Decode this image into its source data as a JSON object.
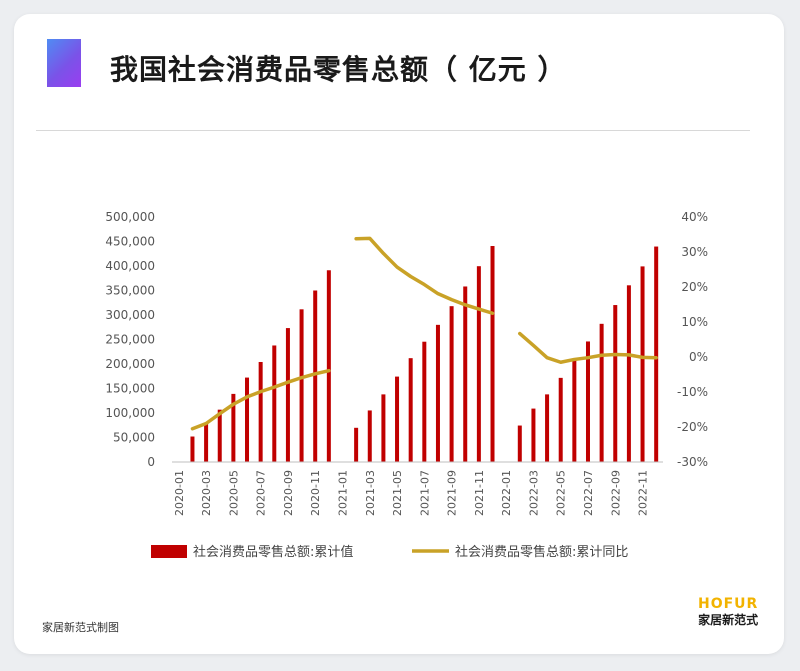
{
  "header": {
    "title": "我国社会消费品零售总额（ 亿元 ）"
  },
  "footer": {
    "note": "家居新范式制图",
    "logo_en": "HOFUR",
    "logo_cn": "家居新范式"
  },
  "colors": {
    "bar": "#c00000",
    "line": "#c9a227",
    "axis_text": "#555555"
  },
  "chart_data": {
    "type": "bar",
    "title": "我国社会消费品零售总额（ 亿元 ）",
    "x": [
      "2020-01",
      "2020-02",
      "2020-03",
      "2020-04",
      "2020-05",
      "2020-06",
      "2020-07",
      "2020-08",
      "2020-09",
      "2020-10",
      "2020-11",
      "2020-12",
      "2021-01",
      "2021-02",
      "2021-03",
      "2021-04",
      "2021-05",
      "2021-06",
      "2021-07",
      "2021-08",
      "2021-09",
      "2021-10",
      "2021-11",
      "2021-12",
      "2022-01",
      "2022-02",
      "2022-03",
      "2022-04",
      "2022-05",
      "2022-06",
      "2022-07",
      "2022-08",
      "2022-09",
      "2022-10",
      "2022-11",
      "2022-12"
    ],
    "x_tick_labels": [
      "2020-01",
      "2020-03",
      "2020-05",
      "2020-07",
      "2020-09",
      "2020-11",
      "2021-01",
      "2021-03",
      "2021-05",
      "2021-07",
      "2021-09",
      "2021-11",
      "2022-01",
      "2022-03",
      "2022-05",
      "2022-07",
      "2022-09",
      "2022-11"
    ],
    "series": [
      {
        "name": "社会消费品零售总额:累计值",
        "type": "bar",
        "axis": "left",
        "values": [
          null,
          52000,
          78600,
          106800,
          139000,
          172300,
          204100,
          237800,
          273300,
          311600,
          350000,
          391300,
          null,
          69800,
          105200,
          138000,
          174300,
          211900,
          245500,
          279900,
          318000,
          358200,
          399600,
          440800,
          null,
          74400,
          109000,
          138000,
          171700,
          210400,
          246000,
          282000,
          320300,
          360600,
          399200,
          439700
        ]
      },
      {
        "name": "社会消费品零售总额:累计同比",
        "type": "line",
        "axis": "right",
        "values": [
          null,
          -20.5,
          -19.0,
          -16.2,
          -13.5,
          -11.4,
          -9.9,
          -8.6,
          -7.2,
          -5.9,
          -4.8,
          -3.9,
          null,
          33.8,
          33.9,
          29.6,
          25.7,
          23.0,
          20.7,
          18.1,
          16.4,
          14.9,
          13.7,
          12.5,
          null,
          6.7,
          3.3,
          -0.2,
          -1.5,
          -0.7,
          -0.2,
          0.5,
          0.7,
          0.6,
          -0.1,
          -0.2
        ]
      }
    ],
    "y_left": {
      "min": 0,
      "max": 500000,
      "ticks": [
        "0",
        "50,000",
        "100,000",
        "150,000",
        "200,000",
        "250,000",
        "300,000",
        "350,000",
        "400,000",
        "450,000",
        "500,000"
      ]
    },
    "y_right": {
      "min": -30,
      "max": 40,
      "ticks": [
        "-30%",
        "-20%",
        "-10%",
        "0%",
        "10%",
        "20%",
        "30%",
        "40%"
      ]
    },
    "grid": false,
    "legend_position": "bottom"
  }
}
